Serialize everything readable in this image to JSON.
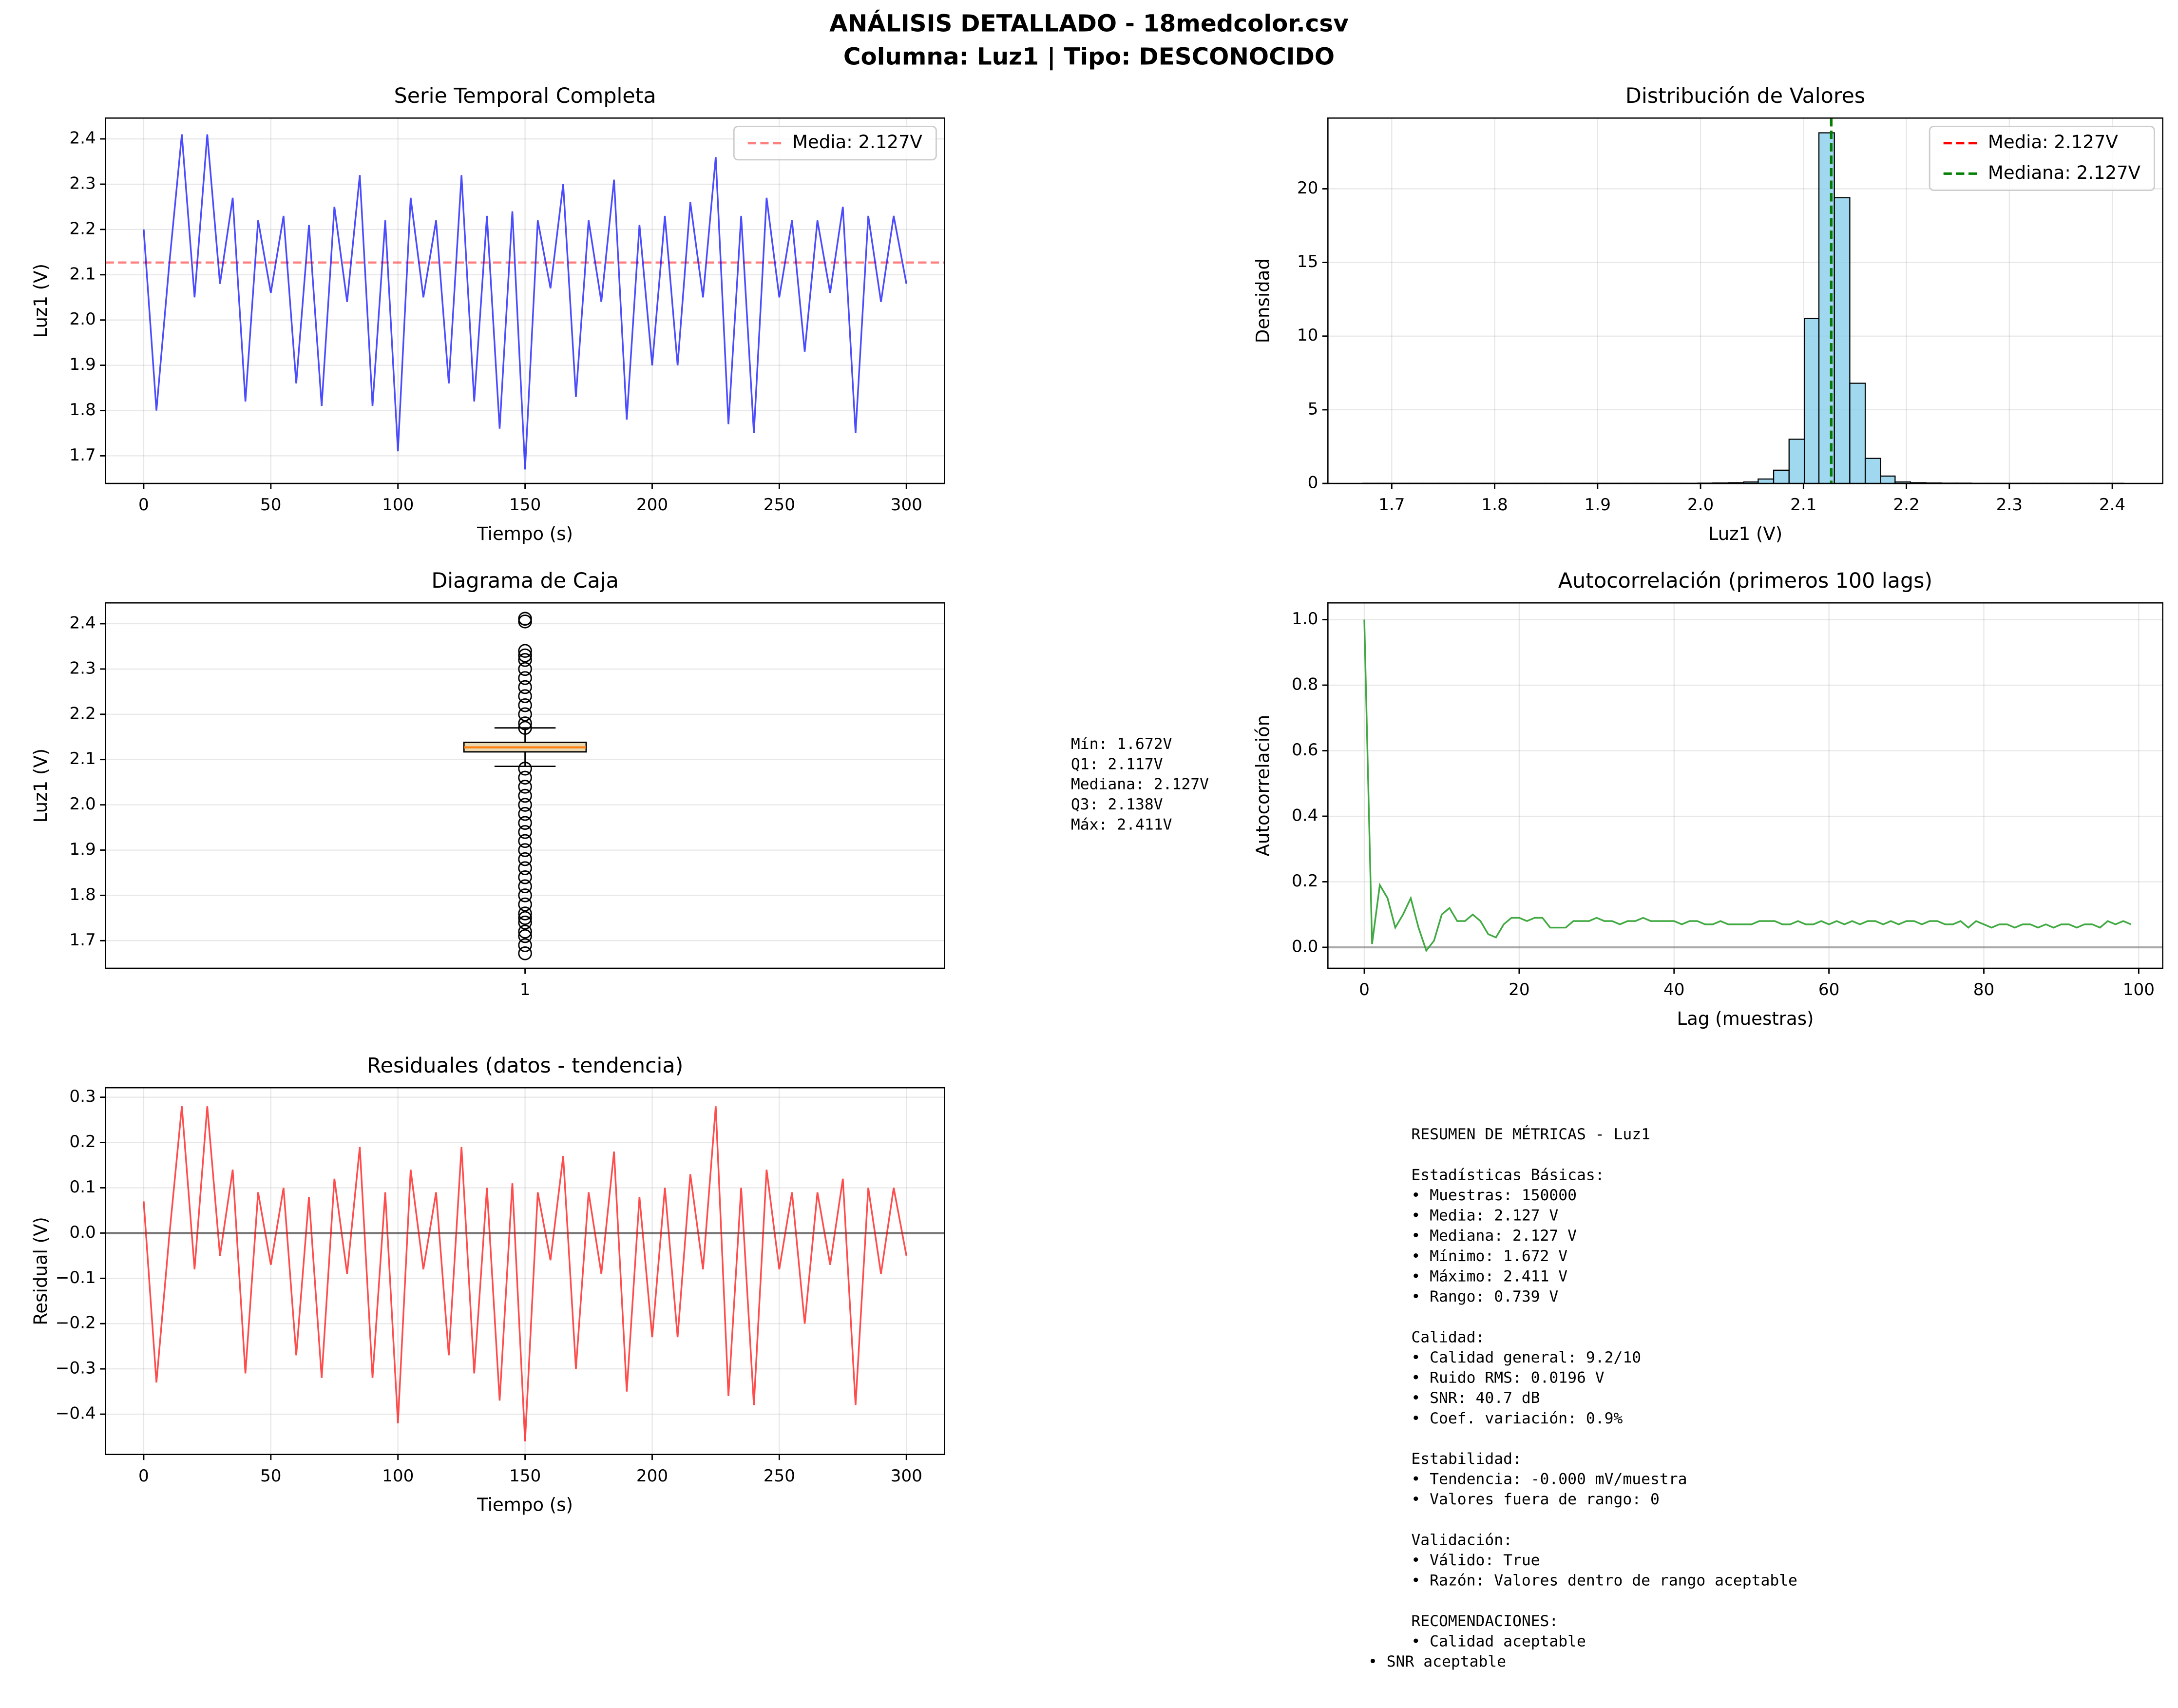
{
  "title": "ANÁLISIS DETALLADO - 18medcolor.csv",
  "subtitle": "Columna: Luz1 | Tipo: DESCONOCIDO",
  "chart_data": [
    {
      "type": "line",
      "title": "Serie Temporal Completa",
      "xlabel": "Tiempo (s)",
      "ylabel": "Luz1 (V)",
      "x": [
        0,
        5,
        10,
        15,
        20,
        25,
        30,
        35,
        40,
        45,
        50,
        55,
        60,
        65,
        70,
        75,
        80,
        85,
        90,
        95,
        100,
        105,
        110,
        115,
        120,
        125,
        130,
        135,
        140,
        145,
        150,
        155,
        160,
        165,
        170,
        175,
        180,
        185,
        190,
        195,
        200,
        205,
        210,
        215,
        220,
        225,
        230,
        235,
        240,
        245,
        250,
        255,
        260,
        265,
        270,
        275,
        280,
        285,
        290,
        295,
        300
      ],
      "series": [
        {
          "color": "#0000ff",
          "opacity": 0.7,
          "values": [
            2.2,
            1.8,
            2.12,
            2.41,
            2.05,
            2.41,
            2.08,
            2.27,
            1.82,
            2.22,
            2.06,
            2.23,
            1.86,
            2.21,
            1.81,
            2.25,
            2.04,
            2.32,
            1.81,
            2.22,
            1.71,
            2.27,
            2.05,
            2.22,
            1.86,
            2.32,
            1.82,
            2.23,
            1.76,
            2.24,
            1.67,
            2.22,
            2.07,
            2.3,
            1.83,
            2.22,
            2.04,
            2.31,
            1.78,
            2.21,
            1.9,
            2.23,
            1.9,
            2.26,
            2.05,
            2.36,
            1.77,
            2.23,
            1.75,
            2.27,
            2.05,
            2.22,
            1.93,
            2.22,
            2.06,
            2.25,
            1.75,
            2.23,
            2.04,
            2.23,
            2.08
          ]
        }
      ],
      "hlines": [
        {
          "value": 2.127,
          "label": "Media: 2.127V",
          "color": "#ff0000",
          "opacity": 0.5,
          "dashed": true
        }
      ],
      "xlim": [
        -15,
        315
      ],
      "xticks": [
        0,
        50,
        100,
        150,
        200,
        250,
        300
      ],
      "ylim": [
        1.639,
        2.446
      ],
      "yticks": [
        1.7,
        1.8,
        1.9,
        {
          "value": 2,
          "label": "2.0"
        },
        2.1,
        2.2,
        2.3,
        2.4
      ],
      "grid": true,
      "legend": "upper right"
    },
    {
      "type": "histogram",
      "title": "Distribución de Valores",
      "xlabel": "Luz1 (V)",
      "ylabel": "Densidad",
      "bins": [
        1.672,
        1.687,
        1.702,
        1.716,
        1.731,
        1.746,
        1.761,
        1.775,
        1.79,
        1.805,
        1.82,
        1.835,
        1.849,
        1.864,
        1.879,
        1.894,
        1.908,
        1.923,
        1.938,
        1.953,
        1.968,
        1.982,
        1.997,
        2.012,
        2.027,
        2.042,
        2.056,
        2.071,
        2.086,
        2.101,
        2.115,
        2.13,
        2.145,
        2.16,
        2.175,
        2.189,
        2.204,
        2.219,
        2.234,
        2.249,
        2.263,
        2.278,
        2.293,
        2.308,
        2.323,
        2.337,
        2.352,
        2.367,
        2.382,
        2.396,
        2.411
      ],
      "values": [
        0.01,
        0.01,
        0.01,
        0.01,
        0.01,
        0.01,
        0.01,
        0.01,
        0.01,
        0.01,
        0.01,
        0.01,
        0.01,
        0.01,
        0.01,
        0.01,
        0.01,
        0.01,
        0.01,
        0.01,
        0.01,
        0.01,
        0.02,
        0.03,
        0.05,
        0.1,
        0.3,
        0.9,
        3.0,
        11.2,
        23.8,
        19.4,
        6.8,
        1.7,
        0.5,
        0.1,
        0.05,
        0.03,
        0.02,
        0.02,
        0.01,
        0.01,
        0.01,
        0.01,
        0.01,
        0.01,
        0.01,
        0.01,
        0.01,
        0.01
      ],
      "color": "#87ceeb",
      "edgecolor": "#000000",
      "vlines": [
        {
          "value": 2.127,
          "label": "Media: 2.127V",
          "color": "#ff0000",
          "opacity": 1,
          "dashed": true
        },
        {
          "value": 2.127,
          "label": "Mediana: 2.127V",
          "color": "#008000",
          "opacity": 1,
          "dashed": true
        }
      ],
      "xlim": [
        1.638,
        2.449
      ],
      "xticks": [
        1.7,
        1.8,
        1.9,
        {
          "value": 2,
          "label": "2.0"
        },
        2.1,
        2.2,
        2.3,
        2.4
      ],
      "ylim": [
        0,
        24.8
      ],
      "yticks": [
        0,
        5,
        10,
        15,
        20
      ],
      "grid": true,
      "legend": "upper right"
    },
    {
      "type": "box",
      "title": "Diagrama de Caja",
      "ylabel": "Luz1 (V)",
      "categories": [
        "1"
      ],
      "whisker_low": 2.085,
      "q1": 2.117,
      "median": 2.127,
      "q3": 2.138,
      "whisker_high": 2.17,
      "outliers": [
        2.411,
        2.405,
        2.34,
        2.33,
        2.32,
        2.3,
        2.28,
        2.26,
        2.24,
        2.22,
        2.2,
        2.18,
        2.17,
        2.08,
        2.06,
        2.04,
        2.02,
        2.0,
        1.98,
        1.96,
        1.94,
        1.92,
        1.9,
        1.88,
        1.86,
        1.84,
        1.82,
        1.8,
        1.78,
        1.76,
        1.75,
        1.74,
        1.72,
        1.71,
        1.69,
        1.672
      ],
      "color": "#ead9b0",
      "median_color": "#ff7f0e",
      "stats_text": [
        "Mín: 1.672V",
        "Q1: 2.117V",
        "Mediana: 2.127V",
        "Q3: 2.138V",
        "Máx: 2.411V"
      ],
      "ylim": [
        1.639,
        2.446
      ],
      "yticks": [
        1.7,
        1.8,
        1.9,
        {
          "value": 2,
          "label": "2.0"
        },
        2.1,
        2.2,
        2.3,
        2.4
      ],
      "grid": true
    },
    {
      "type": "line",
      "title": "Autocorrelación (primeros 100 lags)",
      "xlabel": "Lag (muestras)",
      "ylabel": "Autocorrelación",
      "x": [
        0,
        1,
        2,
        3,
        4,
        5,
        6,
        7,
        8,
        9,
        10,
        11,
        12,
        13,
        14,
        15,
        16,
        17,
        18,
        19,
        20,
        21,
        22,
        23,
        24,
        25,
        26,
        27,
        28,
        29,
        30,
        31,
        32,
        33,
        34,
        35,
        36,
        37,
        38,
        39,
        40,
        41,
        42,
        43,
        44,
        45,
        46,
        47,
        48,
        49,
        50,
        51,
        52,
        53,
        54,
        55,
        56,
        57,
        58,
        59,
        60,
        61,
        62,
        63,
        64,
        65,
        66,
        67,
        68,
        69,
        70,
        71,
        72,
        73,
        74,
        75,
        76,
        77,
        78,
        79,
        80,
        81,
        82,
        83,
        84,
        85,
        86,
        87,
        88,
        89,
        90,
        91,
        92,
        93,
        94,
        95,
        96,
        97,
        98,
        99
      ],
      "series": [
        {
          "color": "#2ca02c",
          "opacity": 0.9,
          "values": [
            1.0,
            0.01,
            0.19,
            0.15,
            0.06,
            0.1,
            0.15,
            0.06,
            -0.01,
            0.02,
            0.1,
            0.12,
            0.08,
            0.08,
            0.1,
            0.08,
            0.04,
            0.03,
            0.07,
            0.09,
            0.09,
            0.08,
            0.09,
            0.09,
            0.06,
            0.06,
            0.06,
            0.08,
            0.08,
            0.08,
            0.09,
            0.08,
            0.08,
            0.07,
            0.08,
            0.08,
            0.09,
            0.08,
            0.08,
            0.08,
            0.08,
            0.07,
            0.08,
            0.08,
            0.07,
            0.07,
            0.08,
            0.07,
            0.07,
            0.07,
            0.07,
            0.08,
            0.08,
            0.08,
            0.07,
            0.07,
            0.08,
            0.07,
            0.07,
            0.08,
            0.07,
            0.08,
            0.07,
            0.08,
            0.07,
            0.08,
            0.08,
            0.07,
            0.08,
            0.07,
            0.08,
            0.08,
            0.07,
            0.08,
            0.08,
            0.07,
            0.07,
            0.08,
            0.06,
            0.08,
            0.07,
            0.06,
            0.07,
            0.07,
            0.06,
            0.07,
            0.07,
            0.06,
            0.07,
            0.06,
            0.07,
            0.07,
            0.06,
            0.07,
            0.07,
            0.06,
            0.08,
            0.07,
            0.08,
            0.07
          ]
        }
      ],
      "hlines": [
        {
          "value": 0,
          "color": "#808080",
          "opacity": 0.6,
          "dashed": false
        }
      ],
      "xlim": [
        -4.7,
        103.1
      ],
      "xticks": [
        0,
        20,
        40,
        60,
        80,
        100
      ],
      "ylim": [
        -0.064,
        1.051
      ],
      "yticks": [
        {
          "value": 0,
          "label": "0.0"
        },
        0.2,
        0.4,
        0.6,
        0.8,
        {
          "value": 1,
          "label": "1.0"
        }
      ],
      "grid": true
    },
    {
      "type": "line",
      "title": "Residuales (datos - tendencia)",
      "xlabel": "Tiempo (s)",
      "ylabel": "Residual (V)",
      "x": [
        0,
        5,
        10,
        15,
        20,
        25,
        30,
        35,
        40,
        45,
        50,
        55,
        60,
        65,
        70,
        75,
        80,
        85,
        90,
        95,
        100,
        105,
        110,
        115,
        120,
        125,
        130,
        135,
        140,
        145,
        150,
        155,
        160,
        165,
        170,
        175,
        180,
        185,
        190,
        195,
        200,
        205,
        210,
        215,
        220,
        225,
        230,
        235,
        240,
        245,
        250,
        255,
        260,
        265,
        270,
        275,
        280,
        285,
        290,
        295,
        300
      ],
      "series": [
        {
          "color": "#ff0000",
          "opacity": 0.7,
          "values": [
            0.07,
            -0.33,
            -0.01,
            0.28,
            -0.08,
            0.28,
            -0.05,
            0.14,
            -0.31,
            0.09,
            -0.07,
            0.1,
            -0.27,
            0.08,
            -0.32,
            0.12,
            -0.09,
            0.19,
            -0.32,
            0.09,
            -0.42,
            0.14,
            -0.08,
            0.09,
            -0.27,
            0.19,
            -0.31,
            0.1,
            -0.37,
            0.11,
            -0.46,
            0.09,
            -0.06,
            0.17,
            -0.3,
            0.09,
            -0.09,
            0.18,
            -0.35,
            0.08,
            -0.23,
            0.1,
            -0.23,
            0.13,
            -0.08,
            0.28,
            -0.36,
            0.1,
            -0.38,
            0.14,
            -0.08,
            0.09,
            -0.2,
            0.09,
            -0.07,
            0.12,
            -0.38,
            0.1,
            -0.09,
            0.1,
            -0.05
          ]
        }
      ],
      "hlines": [
        {
          "value": 0,
          "color": "#000000",
          "opacity": 0.5,
          "dashed": false
        }
      ],
      "xlim": [
        -15,
        315
      ],
      "xticks": [
        0,
        50,
        100,
        150,
        200,
        250,
        300
      ],
      "ylim": [
        -0.489,
        0.321
      ],
      "yticks": [
        {
          "value": -0.4,
          "label": "−0.4"
        },
        {
          "value": -0.3,
          "label": "−0.3"
        },
        {
          "value": -0.2,
          "label": "−0.2"
        },
        {
          "value": -0.1,
          "label": "−0.1"
        },
        {
          "value": 0,
          "label": "0.0"
        },
        0.1,
        0.2,
        0.3
      ],
      "grid": true
    }
  ],
  "summary": {
    "title": "RESUMEN DE MÉTRICAS - Luz1",
    "sections": [
      {
        "heading": "Estadísticas Básicas:",
        "items": [
          "• Muestras: 150000",
          "• Media: 2.127 V",
          "• Mediana: 2.127 V",
          "• Mínimo: 1.672 V",
          "• Máximo: 2.411 V",
          "• Rango: 0.739 V"
        ]
      },
      {
        "heading": "Calidad:",
        "items": [
          "• Calidad general: 9.2/10",
          "• Ruido RMS: 0.0196 V",
          "• SNR: 40.7 dB",
          "• Coef. variación: 0.9%"
        ]
      },
      {
        "heading": "Estabilidad:",
        "items": [
          "• Tendencia: -0.000 mV/muestra",
          "• Valores fuera de rango: 0"
        ]
      },
      {
        "heading": "Validación:",
        "items": [
          "• Válido: True",
          "• Razón: Valores dentro de rango aceptable"
        ]
      },
      {
        "heading": "RECOMENDACIONES:",
        "items": [
          "• Calidad aceptable",
          "• SNR aceptable"
        ]
      }
    ]
  }
}
